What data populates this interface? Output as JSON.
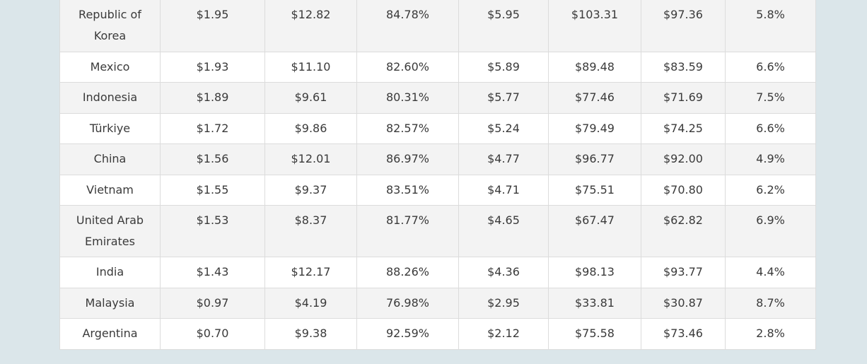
{
  "table": {
    "rows": [
      {
        "country": "Republic of Korea",
        "c1": "$1.95",
        "c2": "$12.82",
        "c3": "84.78%",
        "c4": "$5.95",
        "c5": "$103.31",
        "c6": "$97.36",
        "c7": "5.8%"
      },
      {
        "country": "Mexico",
        "c1": "$1.93",
        "c2": "$11.10",
        "c3": "82.60%",
        "c4": "$5.89",
        "c5": "$89.48",
        "c6": "$83.59",
        "c7": "6.6%"
      },
      {
        "country": "Indonesia",
        "c1": "$1.89",
        "c2": "$9.61",
        "c3": "80.31%",
        "c4": "$5.77",
        "c5": "$77.46",
        "c6": "$71.69",
        "c7": "7.5%"
      },
      {
        "country": "Türkiye",
        "c1": "$1.72",
        "c2": "$9.86",
        "c3": "82.57%",
        "c4": "$5.24",
        "c5": "$79.49",
        "c6": "$74.25",
        "c7": "6.6%"
      },
      {
        "country": "China",
        "c1": "$1.56",
        "c2": "$12.01",
        "c3": "86.97%",
        "c4": "$4.77",
        "c5": "$96.77",
        "c6": "$92.00",
        "c7": "4.9%"
      },
      {
        "country": "Vietnam",
        "c1": "$1.55",
        "c2": "$9.37",
        "c3": "83.51%",
        "c4": "$4.71",
        "c5": "$75.51",
        "c6": "$70.80",
        "c7": "6.2%"
      },
      {
        "country": "United Arab Emirates",
        "c1": "$1.53",
        "c2": "$8.37",
        "c3": "81.77%",
        "c4": "$4.65",
        "c5": "$67.47",
        "c6": "$62.82",
        "c7": "6.9%"
      },
      {
        "country": "India",
        "c1": "$1.43",
        "c2": "$12.17",
        "c3": "88.26%",
        "c4": "$4.36",
        "c5": "$98.13",
        "c6": "$93.77",
        "c7": "4.4%"
      },
      {
        "country": "Malaysia",
        "c1": "$0.97",
        "c2": "$4.19",
        "c3": "76.98%",
        "c4": "$2.95",
        "c5": "$33.81",
        "c6": "$30.87",
        "c7": "8.7%"
      },
      {
        "country": "Argentina",
        "c1": "$0.70",
        "c2": "$9.38",
        "c3": "92.59%",
        "c4": "$2.12",
        "c5": "$75.58",
        "c6": "$73.46",
        "c7": "2.8%"
      }
    ]
  }
}
